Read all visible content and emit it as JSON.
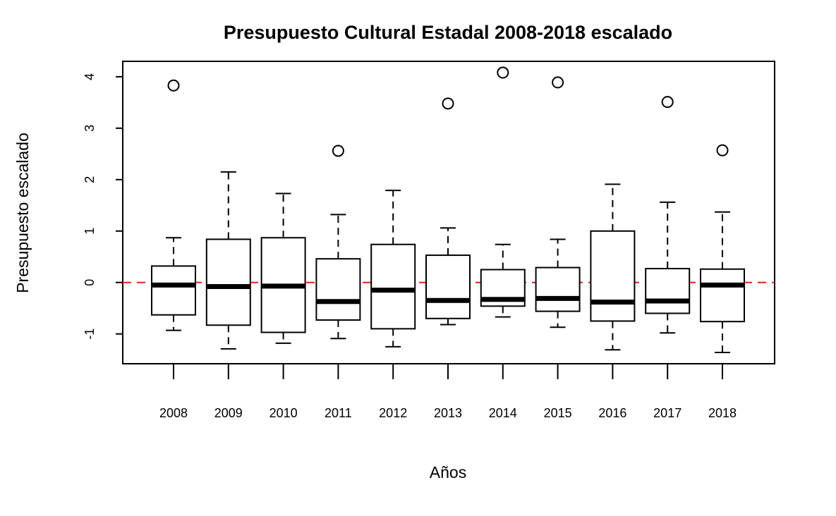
{
  "chart_data": {
    "type": "boxplot",
    "title": "Presupuesto Cultural Estadal 2008-2018 escalado",
    "xlabel": "Años",
    "ylabel": "Presupuesto escalado",
    "categories": [
      "2008",
      "2009",
      "2010",
      "2011",
      "2012",
      "2013",
      "2014",
      "2015",
      "2016",
      "2017",
      "2018"
    ],
    "boxes": [
      {
        "category": "2008",
        "whisker_low": -0.93,
        "q1": -0.63,
        "median": -0.05,
        "q3": 0.32,
        "whisker_high": 0.87,
        "outliers": [
          3.83
        ]
      },
      {
        "category": "2009",
        "whisker_low": -1.29,
        "q1": -0.83,
        "median": -0.08,
        "q3": 0.84,
        "whisker_high": 2.15,
        "outliers": []
      },
      {
        "category": "2010",
        "whisker_low": -1.18,
        "q1": -0.97,
        "median": -0.07,
        "q3": 0.87,
        "whisker_high": 1.73,
        "outliers": []
      },
      {
        "category": "2011",
        "whisker_low": -1.09,
        "q1": -0.73,
        "median": -0.37,
        "q3": 0.46,
        "whisker_high": 1.32,
        "outliers": [
          2.56
        ]
      },
      {
        "category": "2012",
        "whisker_low": -1.25,
        "q1": -0.9,
        "median": -0.15,
        "q3": 0.74,
        "whisker_high": 1.79,
        "outliers": []
      },
      {
        "category": "2013",
        "whisker_low": -0.82,
        "q1": -0.7,
        "median": -0.35,
        "q3": 0.53,
        "whisker_high": 1.06,
        "outliers": [
          3.48
        ]
      },
      {
        "category": "2014",
        "whisker_low": -0.67,
        "q1": -0.46,
        "median": -0.33,
        "q3": 0.25,
        "whisker_high": 0.74,
        "outliers": [
          4.08
        ]
      },
      {
        "category": "2015",
        "whisker_low": -0.87,
        "q1": -0.56,
        "median": -0.31,
        "q3": 0.29,
        "whisker_high": 0.84,
        "outliers": [
          3.89
        ]
      },
      {
        "category": "2016",
        "whisker_low": -1.31,
        "q1": -0.75,
        "median": -0.38,
        "q3": 1.0,
        "whisker_high": 1.91,
        "outliers": []
      },
      {
        "category": "2017",
        "whisker_low": -0.98,
        "q1": -0.6,
        "median": -0.36,
        "q3": 0.27,
        "whisker_high": 1.56,
        "outliers": [
          3.51
        ]
      },
      {
        "category": "2018",
        "whisker_low": -1.36,
        "q1": -0.76,
        "median": -0.05,
        "q3": 0.26,
        "whisker_high": 1.37,
        "outliers": [
          2.57
        ]
      }
    ],
    "yticks": [
      -1,
      0,
      1,
      2,
      3,
      4
    ],
    "ylim": [
      -1.58,
      4.3
    ],
    "reference_line": {
      "y": 0,
      "style": "dashed",
      "color": "#e0211d"
    },
    "colors": {
      "box": "#ffffff",
      "stroke": "#000000"
    },
    "grid": false,
    "legend": "none"
  }
}
